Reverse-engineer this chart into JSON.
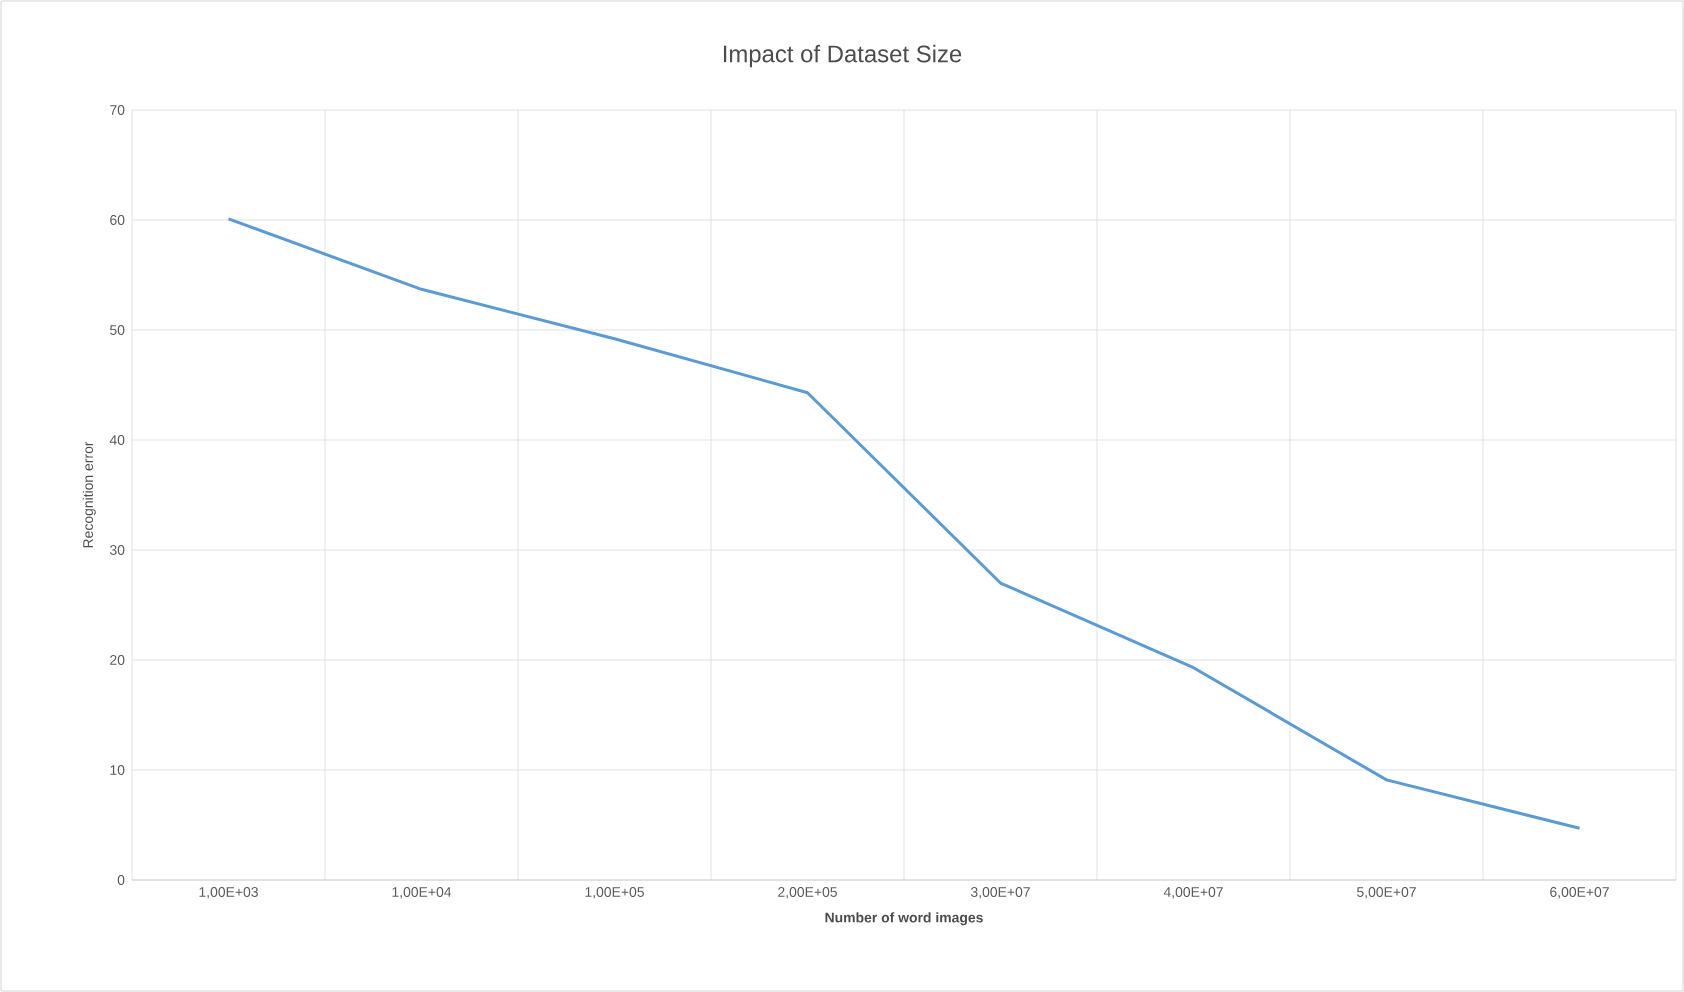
{
  "chart_data": {
    "type": "line",
    "title": "Impact of Dataset Size",
    "xlabel": "Number of word images",
    "ylabel": "Recognition error",
    "categories": [
      "1,00E+03",
      "1,00E+04",
      "1,00E+05",
      "2,00E+05",
      "3,00E+07",
      "4,00E+07",
      "5,00E+07",
      "6,00E+07"
    ],
    "series": [
      {
        "color": "#5b9bd5",
        "values": [
          60.1,
          53.7,
          49.2,
          44.3,
          27.0,
          19.3,
          9.1,
          4.7
        ]
      }
    ],
    "ylim": [
      0,
      70
    ],
    "yticks": [
      0,
      10,
      20,
      30,
      40,
      50,
      60,
      70
    ],
    "grid": true,
    "marker": "none",
    "line_style": "solid"
  }
}
